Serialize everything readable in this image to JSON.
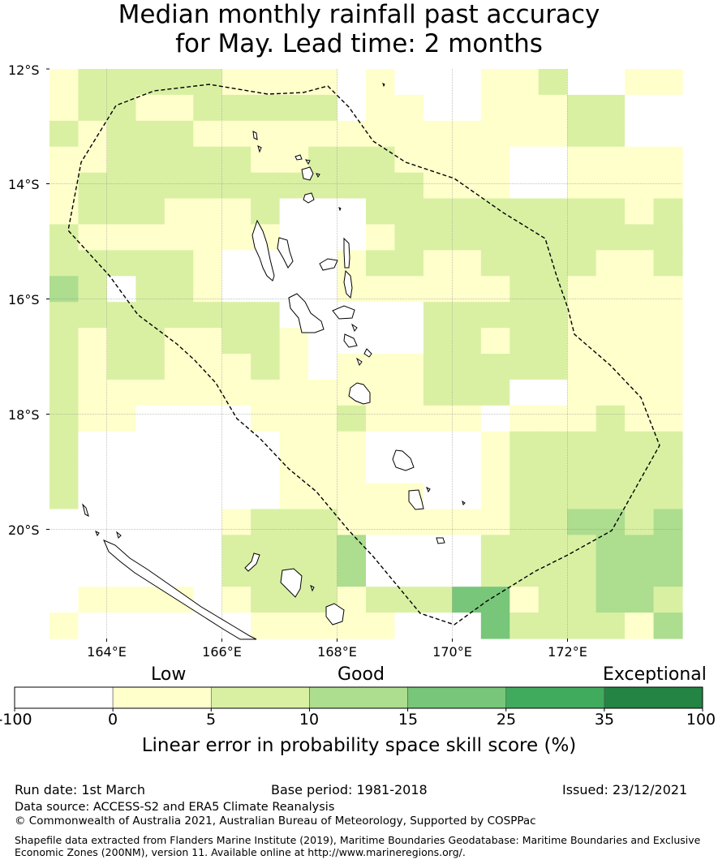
{
  "title": {
    "line1": "Median monthly rainfall past accuracy",
    "line2": "for May. Lead time: 2 months"
  },
  "map": {
    "lat_labels": [
      "12°S",
      "14°S",
      "16°S",
      "18°S",
      "20°S"
    ],
    "lon_labels": [
      "164°E",
      "166°E",
      "168°E",
      "170°E",
      "172°E"
    ],
    "region": "Vanuatu",
    "grid_cells_note": "skill class per grid cell",
    "class_colors": {
      "w": "#ffffff",
      "y": "#ffffcc",
      "g1": "#d9f0a3",
      "g2": "#addd8e",
      "g3": "#78c679",
      "g4": "#41ab5d",
      "g5": "#238443"
    },
    "cells": [
      [
        "y",
        "g1",
        "g1",
        "g1",
        "g1",
        "g1",
        "y",
        "y",
        "y",
        "y",
        "w",
        "y",
        "w",
        "w",
        "w",
        "y",
        "y",
        "g1",
        "w",
        "w",
        "y",
        "y"
      ],
      [
        "y",
        "g1",
        "g1",
        "y",
        "y",
        "g1",
        "g1",
        "g1",
        "g1",
        "g1",
        "w",
        "y",
        "y",
        "w",
        "w",
        "y",
        "y",
        "y",
        "g1",
        "g1",
        "w",
        "w"
      ],
      [
        "g1",
        "y",
        "g1",
        "g1",
        "g1",
        "y",
        "y",
        "y",
        "y",
        "y",
        "y",
        "y",
        "y",
        "y",
        "y",
        "y",
        "y",
        "y",
        "g1",
        "g1",
        "w",
        "w"
      ],
      [
        "y",
        "y",
        "g1",
        "g1",
        "g1",
        "g1",
        "g1",
        "y",
        "y",
        "g1",
        "g1",
        "g1",
        "y",
        "y",
        "y",
        "y",
        "w",
        "w",
        "y",
        "y",
        "y",
        "y"
      ],
      [
        "y",
        "g1",
        "g1",
        "g1",
        "g1",
        "g1",
        "g1",
        "g1",
        "g1",
        "g1",
        "g1",
        "g1",
        "g1",
        "y",
        "y",
        "y",
        "w",
        "w",
        "y",
        "y",
        "y",
        "y"
      ],
      [
        "y",
        "g1",
        "g1",
        "g1",
        "y",
        "y",
        "y",
        "g1",
        "w",
        "w",
        "w",
        "g1",
        "g1",
        "g1",
        "g1",
        "g1",
        "g1",
        "g1",
        "g1",
        "g1",
        "y",
        "g1"
      ],
      [
        "g1",
        "y",
        "y",
        "y",
        "y",
        "y",
        "y",
        "y",
        "w",
        "w",
        "w",
        "y",
        "g1",
        "g1",
        "g1",
        "g1",
        "g1",
        "g1",
        "g1",
        "g1",
        "g1",
        "g1"
      ],
      [
        "g1",
        "g1",
        "g1",
        "g1",
        "g1",
        "y",
        "w",
        "w",
        "w",
        "w",
        "y",
        "g1",
        "g1",
        "y",
        "y",
        "g1",
        "g1",
        "g1",
        "g1",
        "y",
        "y",
        "g1"
      ],
      [
        "g2",
        "g1",
        "w",
        "g1",
        "g1",
        "y",
        "w",
        "w",
        "w",
        "w",
        "y",
        "y",
        "y",
        "y",
        "y",
        "y",
        "g1",
        "g1",
        "y",
        "y",
        "y",
        "y"
      ],
      [
        "g1",
        "g1",
        "g1",
        "g1",
        "g1",
        "g1",
        "g1",
        "g1",
        "w",
        "w",
        "w",
        "w",
        "w",
        "g1",
        "g1",
        "g1",
        "g1",
        "g1",
        "y",
        "y",
        "y",
        "y"
      ],
      [
        "g1",
        "y",
        "g1",
        "g1",
        "y",
        "y",
        "g1",
        "g1",
        "y",
        "w",
        "w",
        "w",
        "w",
        "g1",
        "g1",
        "y",
        "g1",
        "g1",
        "y",
        "y",
        "y",
        "y"
      ],
      [
        "g1",
        "y",
        "g1",
        "g1",
        "y",
        "y",
        "y",
        "g1",
        "y",
        "w",
        "y",
        "y",
        "y",
        "g1",
        "g1",
        "g1",
        "g1",
        "g1",
        "y",
        "y",
        "y",
        "y"
      ],
      [
        "g1",
        "y",
        "y",
        "y",
        "y",
        "y",
        "y",
        "y",
        "y",
        "y",
        "y",
        "y",
        "y",
        "g1",
        "g1",
        "g1",
        "w",
        "w",
        "y",
        "y",
        "y",
        "y"
      ],
      [
        "g1",
        "y",
        "y",
        "w",
        "w",
        "w",
        "w",
        "y",
        "y",
        "y",
        "g1",
        "y",
        "y",
        "y",
        "y",
        "w",
        "y",
        "y",
        "y",
        "g1",
        "y",
        "y"
      ],
      [
        "g1",
        "w",
        "w",
        "w",
        "w",
        "w",
        "w",
        "w",
        "y",
        "y",
        "y",
        "w",
        "w",
        "w",
        "w",
        "y",
        "g1",
        "g1",
        "g1",
        "g1",
        "g1",
        "g1"
      ],
      [
        "g1",
        "w",
        "w",
        "w",
        "w",
        "w",
        "w",
        "w",
        "y",
        "y",
        "y",
        "w",
        "w",
        "w",
        "w",
        "y",
        "g1",
        "g1",
        "g1",
        "g1",
        "g1",
        "g1"
      ],
      [
        "g1",
        "w",
        "w",
        "w",
        "w",
        "w",
        "w",
        "w",
        "y",
        "y",
        "y",
        "y",
        "y",
        "w",
        "w",
        "y",
        "g1",
        "g1",
        "g1",
        "g1",
        "g1",
        "g1"
      ],
      [
        "w",
        "w",
        "w",
        "w",
        "w",
        "w",
        "y",
        "g1",
        "g1",
        "g1",
        "y",
        "y",
        "y",
        "y",
        "y",
        "y",
        "g1",
        "g1",
        "g2",
        "g2",
        "g1",
        "g2"
      ],
      [
        "w",
        "w",
        "w",
        "w",
        "w",
        "w",
        "g1",
        "g1",
        "g1",
        "g1",
        "g2",
        "w",
        "w",
        "w",
        "w",
        "g1",
        "g1",
        "g1",
        "g1",
        "g2",
        "g2",
        "g2"
      ],
      [
        "w",
        "w",
        "w",
        "w",
        "w",
        "w",
        "g1",
        "g1",
        "g1",
        "g1",
        "g2",
        "w",
        "w",
        "w",
        "w",
        "g1",
        "g1",
        "g1",
        "g1",
        "g2",
        "g2",
        "g2"
      ],
      [
        "w",
        "y",
        "y",
        "y",
        "y",
        "w",
        "y",
        "g1",
        "g1",
        "g1",
        "y",
        "g1",
        "g1",
        "g1",
        "g3",
        "g3",
        "y",
        "g1",
        "g1",
        "g2",
        "g2",
        "g1"
      ],
      [
        "y",
        "w",
        "w",
        "w",
        "w",
        "w",
        "w",
        "y",
        "y",
        "y",
        "y",
        "y",
        "w",
        "w",
        "w",
        "g3",
        "g1",
        "g1",
        "g1",
        "g1",
        "y",
        "g2"
      ]
    ]
  },
  "colorbar": {
    "category_low": "Low",
    "category_good": "Good",
    "category_exceptional": "Exceptional",
    "ticks": [
      "-100",
      "0",
      "5",
      "10",
      "15",
      "25",
      "35",
      "100"
    ],
    "colors": [
      "#ffffff",
      "#ffffcc",
      "#d9f0a3",
      "#addd8e",
      "#78c679",
      "#41ab5d",
      "#238443"
    ],
    "label": "Linear error in probability space skill score (%)"
  },
  "footer": {
    "run_date": "Run date: 1st March",
    "base_period": "Base period: 1981-2018",
    "issued": "Issued: 23/12/2021",
    "data_source": "Data source: ACCESS-S2 and ERA5 Climate Reanalysis",
    "copyright": "© Commonwealth of Australia 2021, Australian Bureau of Meteorology, Supported by COSPPac",
    "shapefile_line1": "Shapefile data extracted from Flanders Marine Institute (2019), Maritime Boundaries Geodatabase: Maritime Boundaries and Exclusive",
    "shapefile_line2": "Economic Zones (200NM), version 11. Available online at http://www.marineregions.org/."
  }
}
